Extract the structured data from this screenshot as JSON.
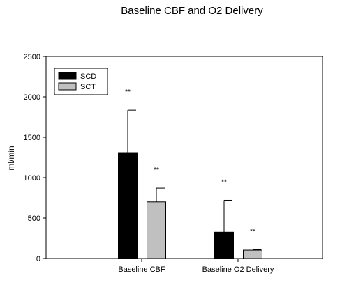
{
  "chart_data": {
    "type": "bar",
    "title": "Baseline CBF and O2 Delivery",
    "xlabel": "",
    "ylabel": "ml/min",
    "ylim": [
      0,
      2500
    ],
    "yticks": [
      0,
      500,
      1000,
      1500,
      2000,
      2500
    ],
    "categories": [
      "Baseline CBF",
      "Baseline O2 Delivery"
    ],
    "series": [
      {
        "name": "SCD",
        "color": "#000000",
        "values": [
          1310,
          325
        ],
        "errors": [
          525,
          395
        ],
        "annotations": [
          "**",
          "**"
        ]
      },
      {
        "name": "SCT",
        "color": "#c0c0c0",
        "values": [
          700,
          103
        ],
        "errors": [
          170,
          5
        ],
        "annotations": [
          "**",
          "**"
        ]
      }
    ],
    "error_bars": "upper",
    "legend_position": "top-left",
    "grid": false
  }
}
